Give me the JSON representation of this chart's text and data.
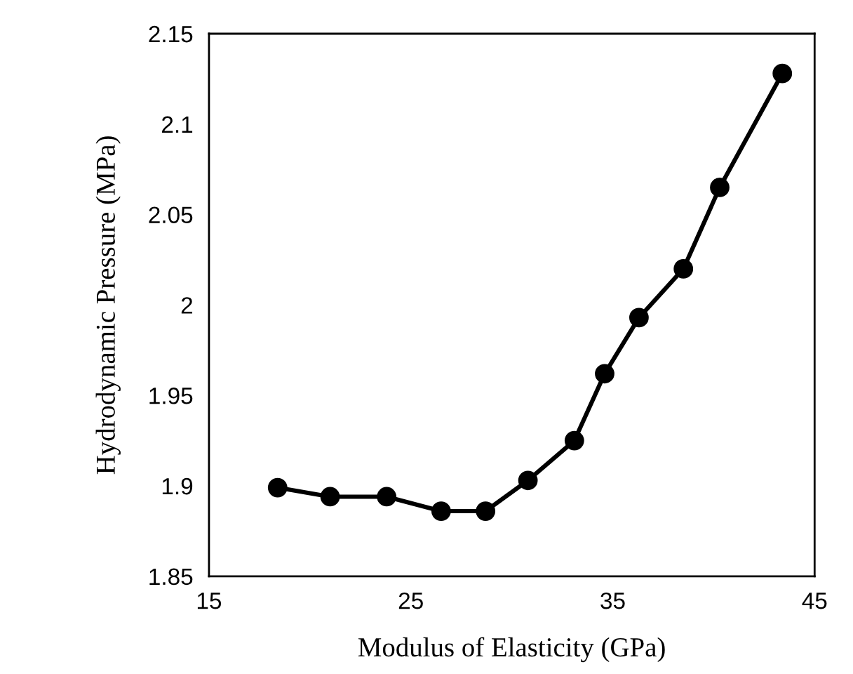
{
  "chart_data": {
    "type": "line",
    "xlabel": "Modulus of Elasticity (GPa)",
    "ylabel": "Hydrodynamic Pressure (MPa)",
    "x": [
      18.4,
      21.0,
      23.8,
      26.5,
      28.7,
      30.8,
      33.1,
      34.6,
      36.3,
      38.5,
      40.3,
      43.4
    ],
    "series": [
      {
        "color": "#000000",
        "values": [
          1.899,
          1.894,
          1.894,
          1.886,
          1.886,
          1.903,
          1.925,
          1.962,
          1.993,
          2.02,
          2.065,
          2.128
        ]
      }
    ],
    "xlim": [
      15,
      45
    ],
    "xticks": [
      15,
      25,
      35,
      45
    ],
    "ylim": [
      1.85,
      2.15
    ],
    "yticks": [
      1.85,
      1.9,
      1.95,
      2,
      2.05,
      2.1,
      2.15
    ],
    "marker": "circle",
    "line_style": "solid",
    "grid": false,
    "legend": false
  }
}
